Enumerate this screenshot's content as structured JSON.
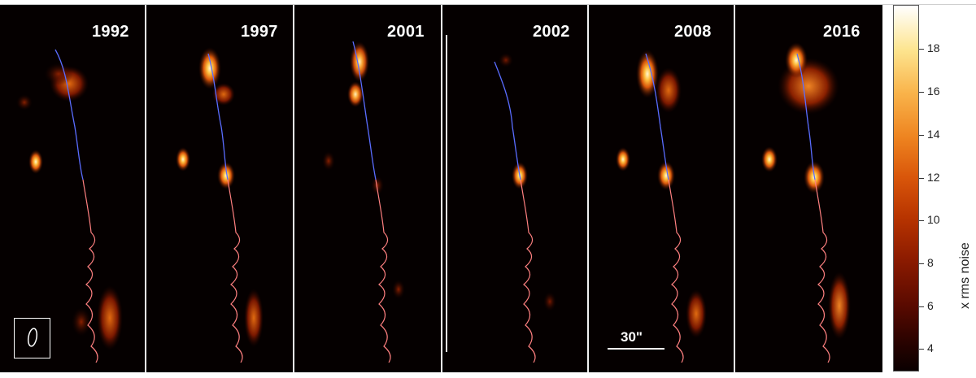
{
  "panels": [
    {
      "year": "1992"
    },
    {
      "year": "1997"
    },
    {
      "year": "2001"
    },
    {
      "year": "2002"
    },
    {
      "year": "2008"
    },
    {
      "year": "2016"
    }
  ],
  "scale_label": "30\"",
  "colorbar": {
    "title": "x rms noise",
    "ticks": [
      "18",
      "16",
      "14",
      "12",
      "10",
      "8",
      "6",
      "4"
    ]
  },
  "colors": {
    "background": "#050000",
    "track_blue": "#5a6cff",
    "track_red": "#ff8080"
  }
}
